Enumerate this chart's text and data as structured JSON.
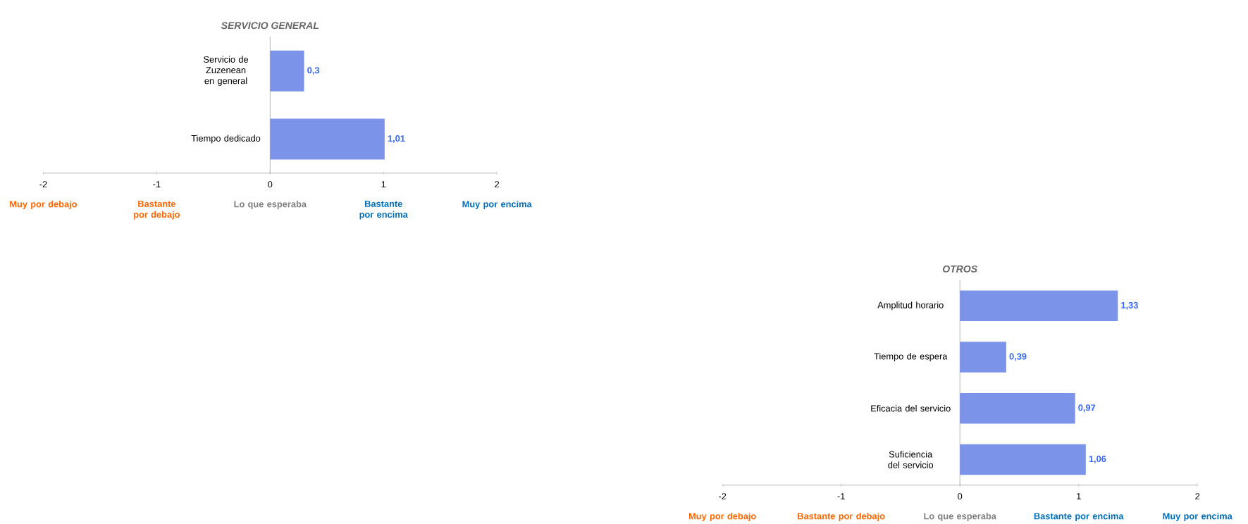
{
  "chart_data": [
    {
      "type": "bar",
      "orientation": "horizontal",
      "title": "SERVICIO GENERAL",
      "categories": [
        "Servicio de Zuzenean en general",
        "Tiempo dedicado"
      ],
      "values": [
        0.3,
        1.01
      ],
      "value_labels": [
        "0,3",
        "1,01"
      ],
      "color": "#7b93e8",
      "xlim": [
        -2,
        2
      ],
      "xticks": [
        -2,
        -1,
        0,
        1,
        2
      ],
      "annotations": [
        "Muy por debajo",
        "Bastante por debajo",
        "Lo que esperaba",
        "Bastante por encima",
        "Muy por encima"
      ]
    },
    {
      "type": "bar",
      "orientation": "horizontal",
      "title": "OTROS",
      "categories": [
        "Amplitud horario",
        "Tiempo de espera",
        "Eficacia del servicio",
        "Suficiencia del servicio"
      ],
      "values": [
        1.33,
        0.39,
        0.97,
        1.06
      ],
      "value_labels": [
        "1,33",
        "0,39",
        "0,97",
        "1,06"
      ],
      "color": "#7b93e8",
      "xlim": [
        -2,
        2
      ],
      "xticks": [
        -2,
        -1,
        0,
        1,
        2
      ],
      "annotations": [
        "Muy por debajo",
        "Bastante por debajo",
        "Lo que esperaba",
        "Bastante por encima",
        "Muy por encima"
      ]
    }
  ]
}
